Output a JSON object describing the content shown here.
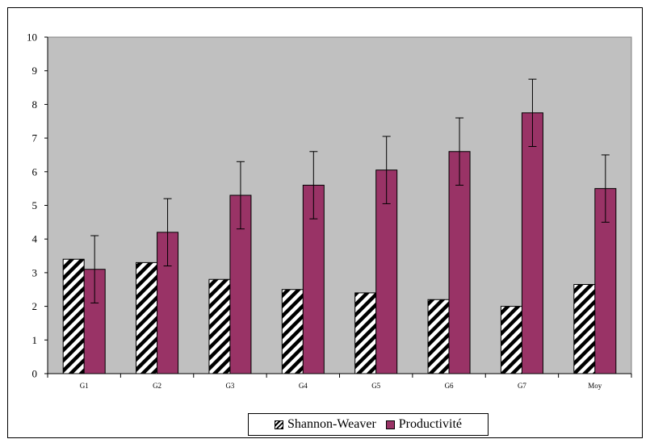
{
  "colors": {
    "plot_background": "#c0c0c0",
    "series1_fill": "hatch-black-white",
    "series2_fill": "#993366",
    "axis": "#000000"
  },
  "chart_data": {
    "type": "bar",
    "title": "",
    "xlabel": "",
    "ylabel": "",
    "ylim": [
      0,
      10
    ],
    "yticks": [
      "0",
      "1",
      "2",
      "3",
      "4",
      "5",
      "6",
      "7",
      "8",
      "9",
      "10"
    ],
    "grid": false,
    "legend_position": "bottom",
    "categories": [
      "G1",
      "G2",
      "G3",
      "G4",
      "G5",
      "G6",
      "G7",
      "Moy"
    ],
    "series": [
      {
        "name": "Shannon-Weaver",
        "pattern": "diagonal-hatch",
        "values": [
          3.4,
          3.3,
          2.8,
          2.5,
          2.4,
          2.2,
          2.0,
          2.65
        ]
      },
      {
        "name": "Productivité",
        "color": "#993366",
        "values": [
          3.1,
          4.2,
          5.3,
          5.6,
          6.05,
          6.6,
          7.75,
          5.5
        ],
        "error": [
          1.0,
          1.0,
          1.0,
          1.0,
          1.0,
          1.0,
          1.0,
          1.0
        ]
      }
    ]
  }
}
